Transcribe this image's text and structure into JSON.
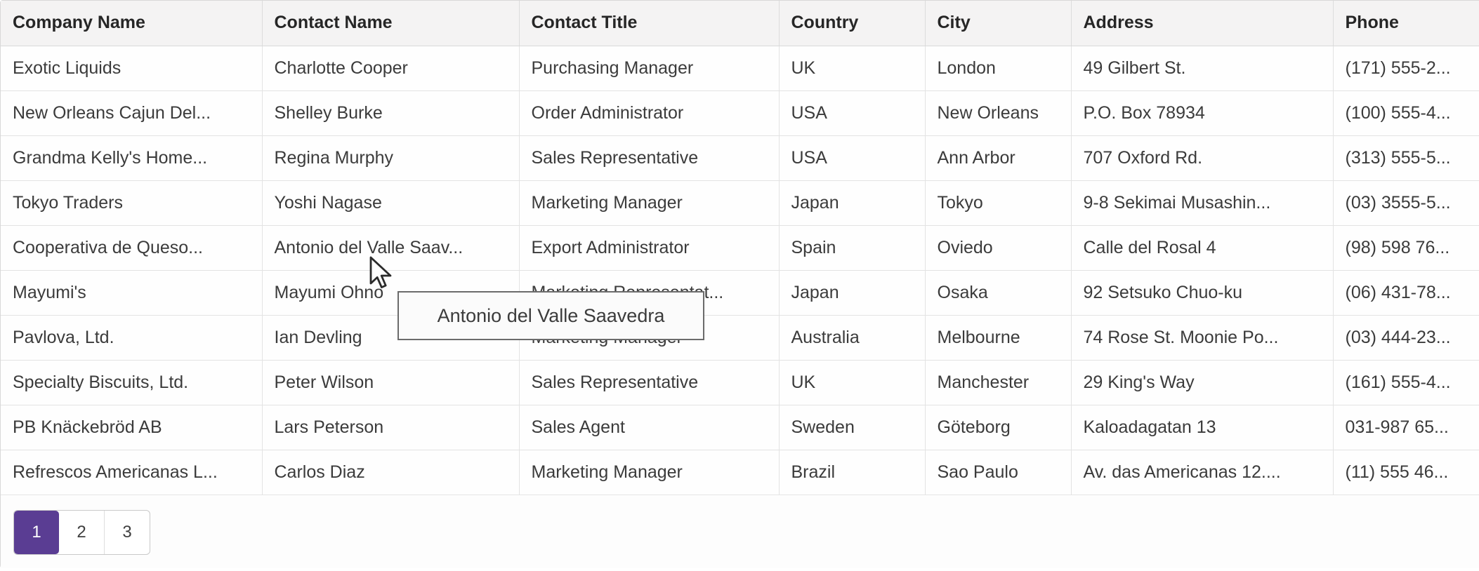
{
  "grid": {
    "columns": [
      "Company Name",
      "Contact Name",
      "Contact Title",
      "Country",
      "City",
      "Address",
      "Phone"
    ],
    "rows": [
      [
        "Exotic Liquids",
        "Charlotte Cooper",
        "Purchasing Manager",
        "UK",
        "London",
        "49 Gilbert St.",
        "(171) 555-2..."
      ],
      [
        "New Orleans Cajun Del...",
        "Shelley Burke",
        "Order Administrator",
        "USA",
        "New Orleans",
        "P.O. Box 78934",
        "(100) 555-4..."
      ],
      [
        "Grandma Kelly's Home...",
        "Regina Murphy",
        "Sales Representative",
        "USA",
        "Ann Arbor",
        "707 Oxford Rd.",
        "(313) 555-5..."
      ],
      [
        "Tokyo Traders",
        "Yoshi Nagase",
        "Marketing Manager",
        "Japan",
        "Tokyo",
        "9-8 Sekimai Musashin...",
        "(03) 3555-5..."
      ],
      [
        "Cooperativa de Queso...",
        "Antonio del Valle Saav...",
        "Export Administrator",
        "Spain",
        "Oviedo",
        "Calle del Rosal 4",
        "(98) 598 76..."
      ],
      [
        "Mayumi's",
        "Mayumi Ohno",
        "Marketing Representat...",
        "Japan",
        "Osaka",
        "92 Setsuko Chuo-ku",
        "(06) 431-78..."
      ],
      [
        "Pavlova, Ltd.",
        "Ian Devling",
        "Marketing Manager",
        "Australia",
        "Melbourne",
        "74 Rose St. Moonie Po...",
        "(03) 444-23..."
      ],
      [
        "Specialty Biscuits, Ltd.",
        "Peter Wilson",
        "Sales Representative",
        "UK",
        "Manchester",
        "29 King's Way",
        "(161) 555-4..."
      ],
      [
        "PB Knäckebröd AB",
        "Lars Peterson",
        "Sales Agent",
        "Sweden",
        "Göteborg",
        "Kaloadagatan 13",
        "031-987 65..."
      ],
      [
        "Refrescos Americanas L...",
        "Carlos Diaz",
        "Marketing Manager",
        "Brazil",
        "Sao Paulo",
        "Av. das Americanas 12....",
        "(11) 555 46..."
      ]
    ],
    "pager": {
      "pages": [
        "1",
        "2",
        "3"
      ],
      "active_page": "1"
    },
    "tooltip": {
      "text": "Antonio del Valle Saavedra"
    }
  },
  "colors": {
    "accent": "#5a3d93",
    "header_bg": "#f4f3f3",
    "grid_line": "#e3e3e3",
    "text": "#3b3b3b"
  }
}
